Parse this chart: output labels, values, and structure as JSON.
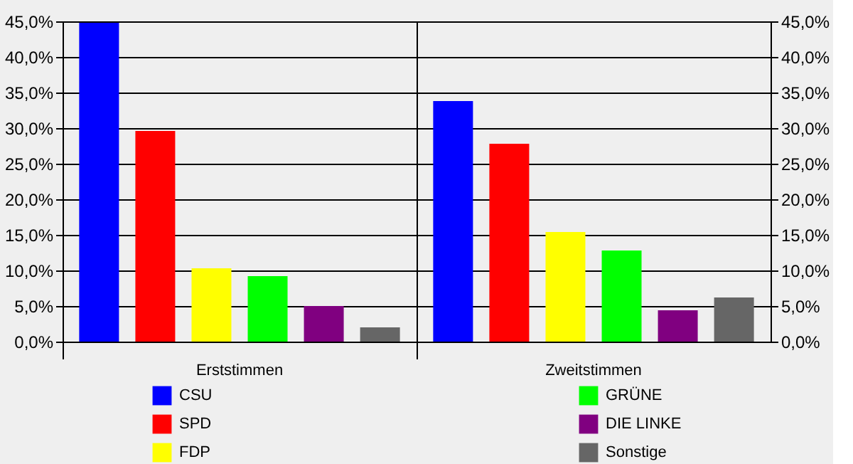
{
  "chart_data": {
    "type": "bar",
    "categories": [
      "Erststimmen",
      "Zweitstimmen"
    ],
    "series": [
      {
        "name": "CSU",
        "color": "#0000ff",
        "values": [
          44.8,
          33.8
        ]
      },
      {
        "name": "SPD",
        "color": "#ff0000",
        "values": [
          29.6,
          27.8
        ]
      },
      {
        "name": "FDP",
        "color": "#ffff00",
        "values": [
          10.3,
          15.4
        ]
      },
      {
        "name": "GRÜNE",
        "color": "#00ff00",
        "values": [
          9.2,
          12.8
        ]
      },
      {
        "name": "DIE LINKE",
        "color": "#800080",
        "values": [
          5.0,
          4.4
        ]
      },
      {
        "name": "Sonstige",
        "color": "#666666",
        "values": [
          2.0,
          6.2
        ]
      }
    ],
    "ylim": [
      0,
      45
    ],
    "yticks": [
      {
        "value": 0,
        "label": "0,0%"
      },
      {
        "value": 5,
        "label": "5,0%"
      },
      {
        "value": 10,
        "label": "10,0%"
      },
      {
        "value": 15,
        "label": "15,0%"
      },
      {
        "value": 20,
        "label": "20,0%"
      },
      {
        "value": 25,
        "label": "25,0%"
      },
      {
        "value": 30,
        "label": "30,0%"
      },
      {
        "value": 35,
        "label": "35,0%"
      },
      {
        "value": 40,
        "label": "40,0%"
      },
      {
        "value": 45,
        "label": "45,0%"
      }
    ],
    "y2lim": [
      0,
      45
    ],
    "y2ticks": [
      {
        "value": 0,
        "label": "0,0%"
      },
      {
        "value": 5,
        "label": "5,0%"
      },
      {
        "value": 10,
        "label": "10,0%"
      },
      {
        "value": 15,
        "label": "15,0%"
      },
      {
        "value": 20,
        "label": "20,0%"
      },
      {
        "value": 25,
        "label": "25,0%"
      },
      {
        "value": 30,
        "label": "30,0%"
      },
      {
        "value": 35,
        "label": "35,0%"
      },
      {
        "value": 40,
        "label": "40,0%"
      },
      {
        "value": 45,
        "label": "45,0%"
      }
    ],
    "grid": "y",
    "legend": "bottom"
  }
}
